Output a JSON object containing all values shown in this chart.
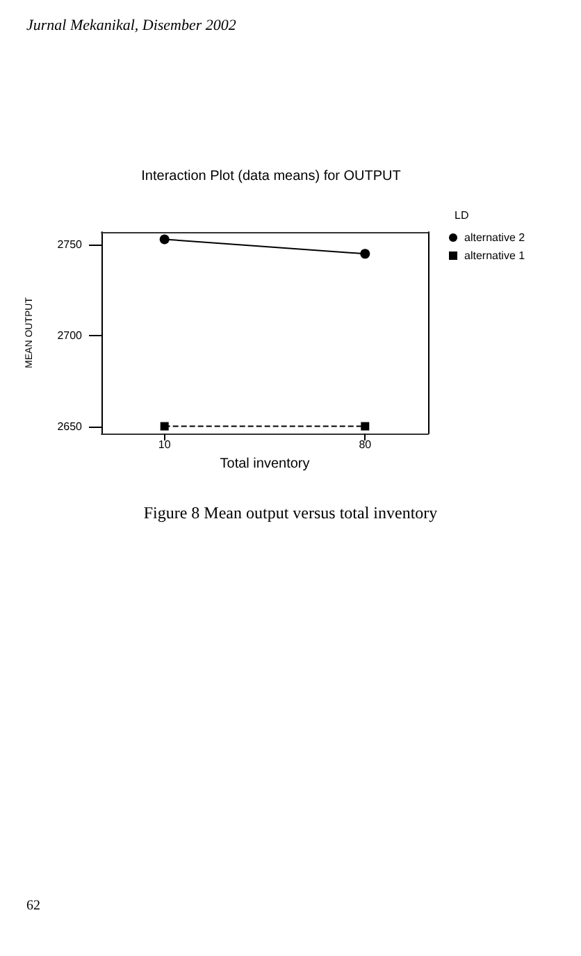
{
  "chart_data": {
    "type": "line",
    "title": "Interaction Plot (data means) for OUTPUT",
    "xlabel": "Total inventory",
    "ylabel": "MEAN OUTPUT",
    "legend_title": "LD",
    "x": [
      10,
      80
    ],
    "xlim": [
      -12,
      102
    ],
    "xticks": [
      10,
      80
    ],
    "series": [
      {
        "name": "alternative 2",
        "color": "#000000",
        "values": [
          2753,
          2745
        ],
        "marker": "circle",
        "line_style": "solid"
      },
      {
        "name": "alternative 1",
        "color": "#000000",
        "values": [
          2650,
          2650
        ],
        "marker": "square",
        "line_style": "dashed"
      }
    ],
    "ylim": [
      2646,
      2757
    ],
    "yticks": [
      2650,
      2700,
      2750
    ],
    "grid": false,
    "legend": "top right",
    "annotations": [
      "Jurnal Mekanikal, Disember 2002",
      "Figure 8 Mean output versus total inventory",
      "62"
    ]
  }
}
